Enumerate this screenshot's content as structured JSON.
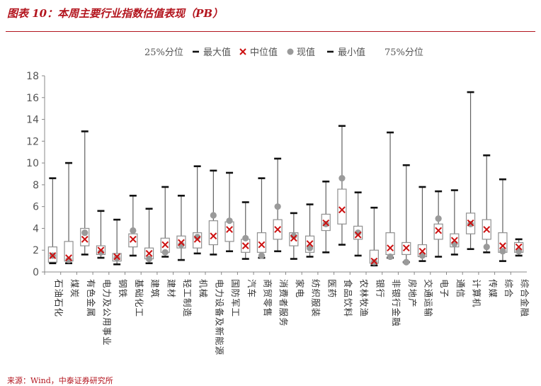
{
  "figure_title": "图表 10：本周主要行业指数估值表现（PB）",
  "source_note": "来源：Wind，中泰证券研究所",
  "colors": {
    "title_red": "#b3151e",
    "box_stroke": "#909090",
    "whisker": "#606060",
    "end_tick": "#111111",
    "median_cross": "#cc1010",
    "current_dot": "#9a9a9a",
    "axis_text": "#555555"
  },
  "chart_data": {
    "type": "box",
    "legend_position": "top",
    "legend": [
      {
        "key": "q1",
        "label": "25%分位"
      },
      {
        "key": "max",
        "label": "最大值"
      },
      {
        "key": "median",
        "label": "中位值"
      },
      {
        "key": "current",
        "label": "现值"
      },
      {
        "key": "min",
        "label": "最小值"
      },
      {
        "key": "q3",
        "label": "75%分位"
      }
    ],
    "ylim": [
      0,
      18
    ],
    "ytick_step": 2,
    "grid": false,
    "categories": [
      "石油石化",
      "煤炭",
      "有色金属",
      "电力及公用事业",
      "钢铁",
      "基础化工",
      "建筑",
      "建材",
      "轻工制造",
      "机械",
      "电力设备及新能源",
      "国防军工",
      "汽车",
      "商贸零售",
      "消费者服务",
      "家电",
      "纺织服装",
      "医药",
      "食品饮料",
      "农林牧渔",
      "银行",
      "非银行金融",
      "房地产",
      "交通运输",
      "电子",
      "通信",
      "计算机",
      "传媒",
      "综合",
      "综合金融"
    ],
    "max": [
      8.6,
      10.0,
      12.9,
      5.6,
      4.8,
      7.0,
      5.8,
      7.8,
      7.0,
      9.7,
      9.3,
      9.1,
      6.4,
      8.6,
      10.4,
      5.4,
      6.2,
      8.3,
      13.4,
      7.3,
      5.9,
      12.8,
      9.8,
      7.8,
      7.4,
      7.5,
      16.5,
      10.7,
      8.5,
      3.0
    ],
    "q3": [
      2.3,
      2.8,
      4.0,
      2.4,
      1.7,
      3.5,
      2.2,
      3.1,
      3.3,
      3.6,
      4.7,
      4.6,
      3.0,
      3.6,
      4.8,
      3.6,
      3.3,
      5.3,
      7.6,
      4.2,
      2.0,
      3.6,
      2.7,
      2.5,
      4.4,
      3.5,
      5.4,
      4.8,
      3.6,
      2.7
    ],
    "median": [
      1.5,
      1.3,
      3.0,
      2.0,
      1.4,
      3.0,
      1.7,
      2.5,
      2.7,
      3.0,
      3.3,
      3.9,
      2.4,
      2.5,
      3.9,
      3.1,
      2.6,
      4.5,
      5.7,
      3.4,
      1.0,
      2.2,
      2.2,
      1.9,
      3.8,
      2.9,
      4.5,
      3.9,
      2.4,
      2.3
    ],
    "q1": [
      0.9,
      1.0,
      2.4,
      1.6,
      1.0,
      2.3,
      1.2,
      1.8,
      2.2,
      2.2,
      2.5,
      2.8,
      1.8,
      1.8,
      3.0,
      2.4,
      1.8,
      3.8,
      4.4,
      3.0,
      0.8,
      1.6,
      1.6,
      1.4,
      3.0,
      2.3,
      3.5,
      3.0,
      1.8,
      1.8
    ],
    "min": [
      0.8,
      0.8,
      1.6,
      1.3,
      0.7,
      1.5,
      0.8,
      1.4,
      1.1,
      1.7,
      1.6,
      1.9,
      1.2,
      1.3,
      1.9,
      1.2,
      1.4,
      1.8,
      2.5,
      1.5,
      0.6,
      1.3,
      0.9,
      1.0,
      1.4,
      1.6,
      2.1,
      1.8,
      1.0,
      1.5
    ],
    "current": [
      1.5,
      1.1,
      3.6,
      1.8,
      1.3,
      3.8,
      1.2,
      1.8,
      2.5,
      3.2,
      5.2,
      4.7,
      3.1,
      1.5,
      6.0,
      3.3,
      2.2,
      4.4,
      8.6,
      3.6,
      0.9,
      1.4,
      0.9,
      1.5,
      4.9,
      2.6,
      4.4,
      2.3,
      1.9,
      1.9
    ]
  }
}
